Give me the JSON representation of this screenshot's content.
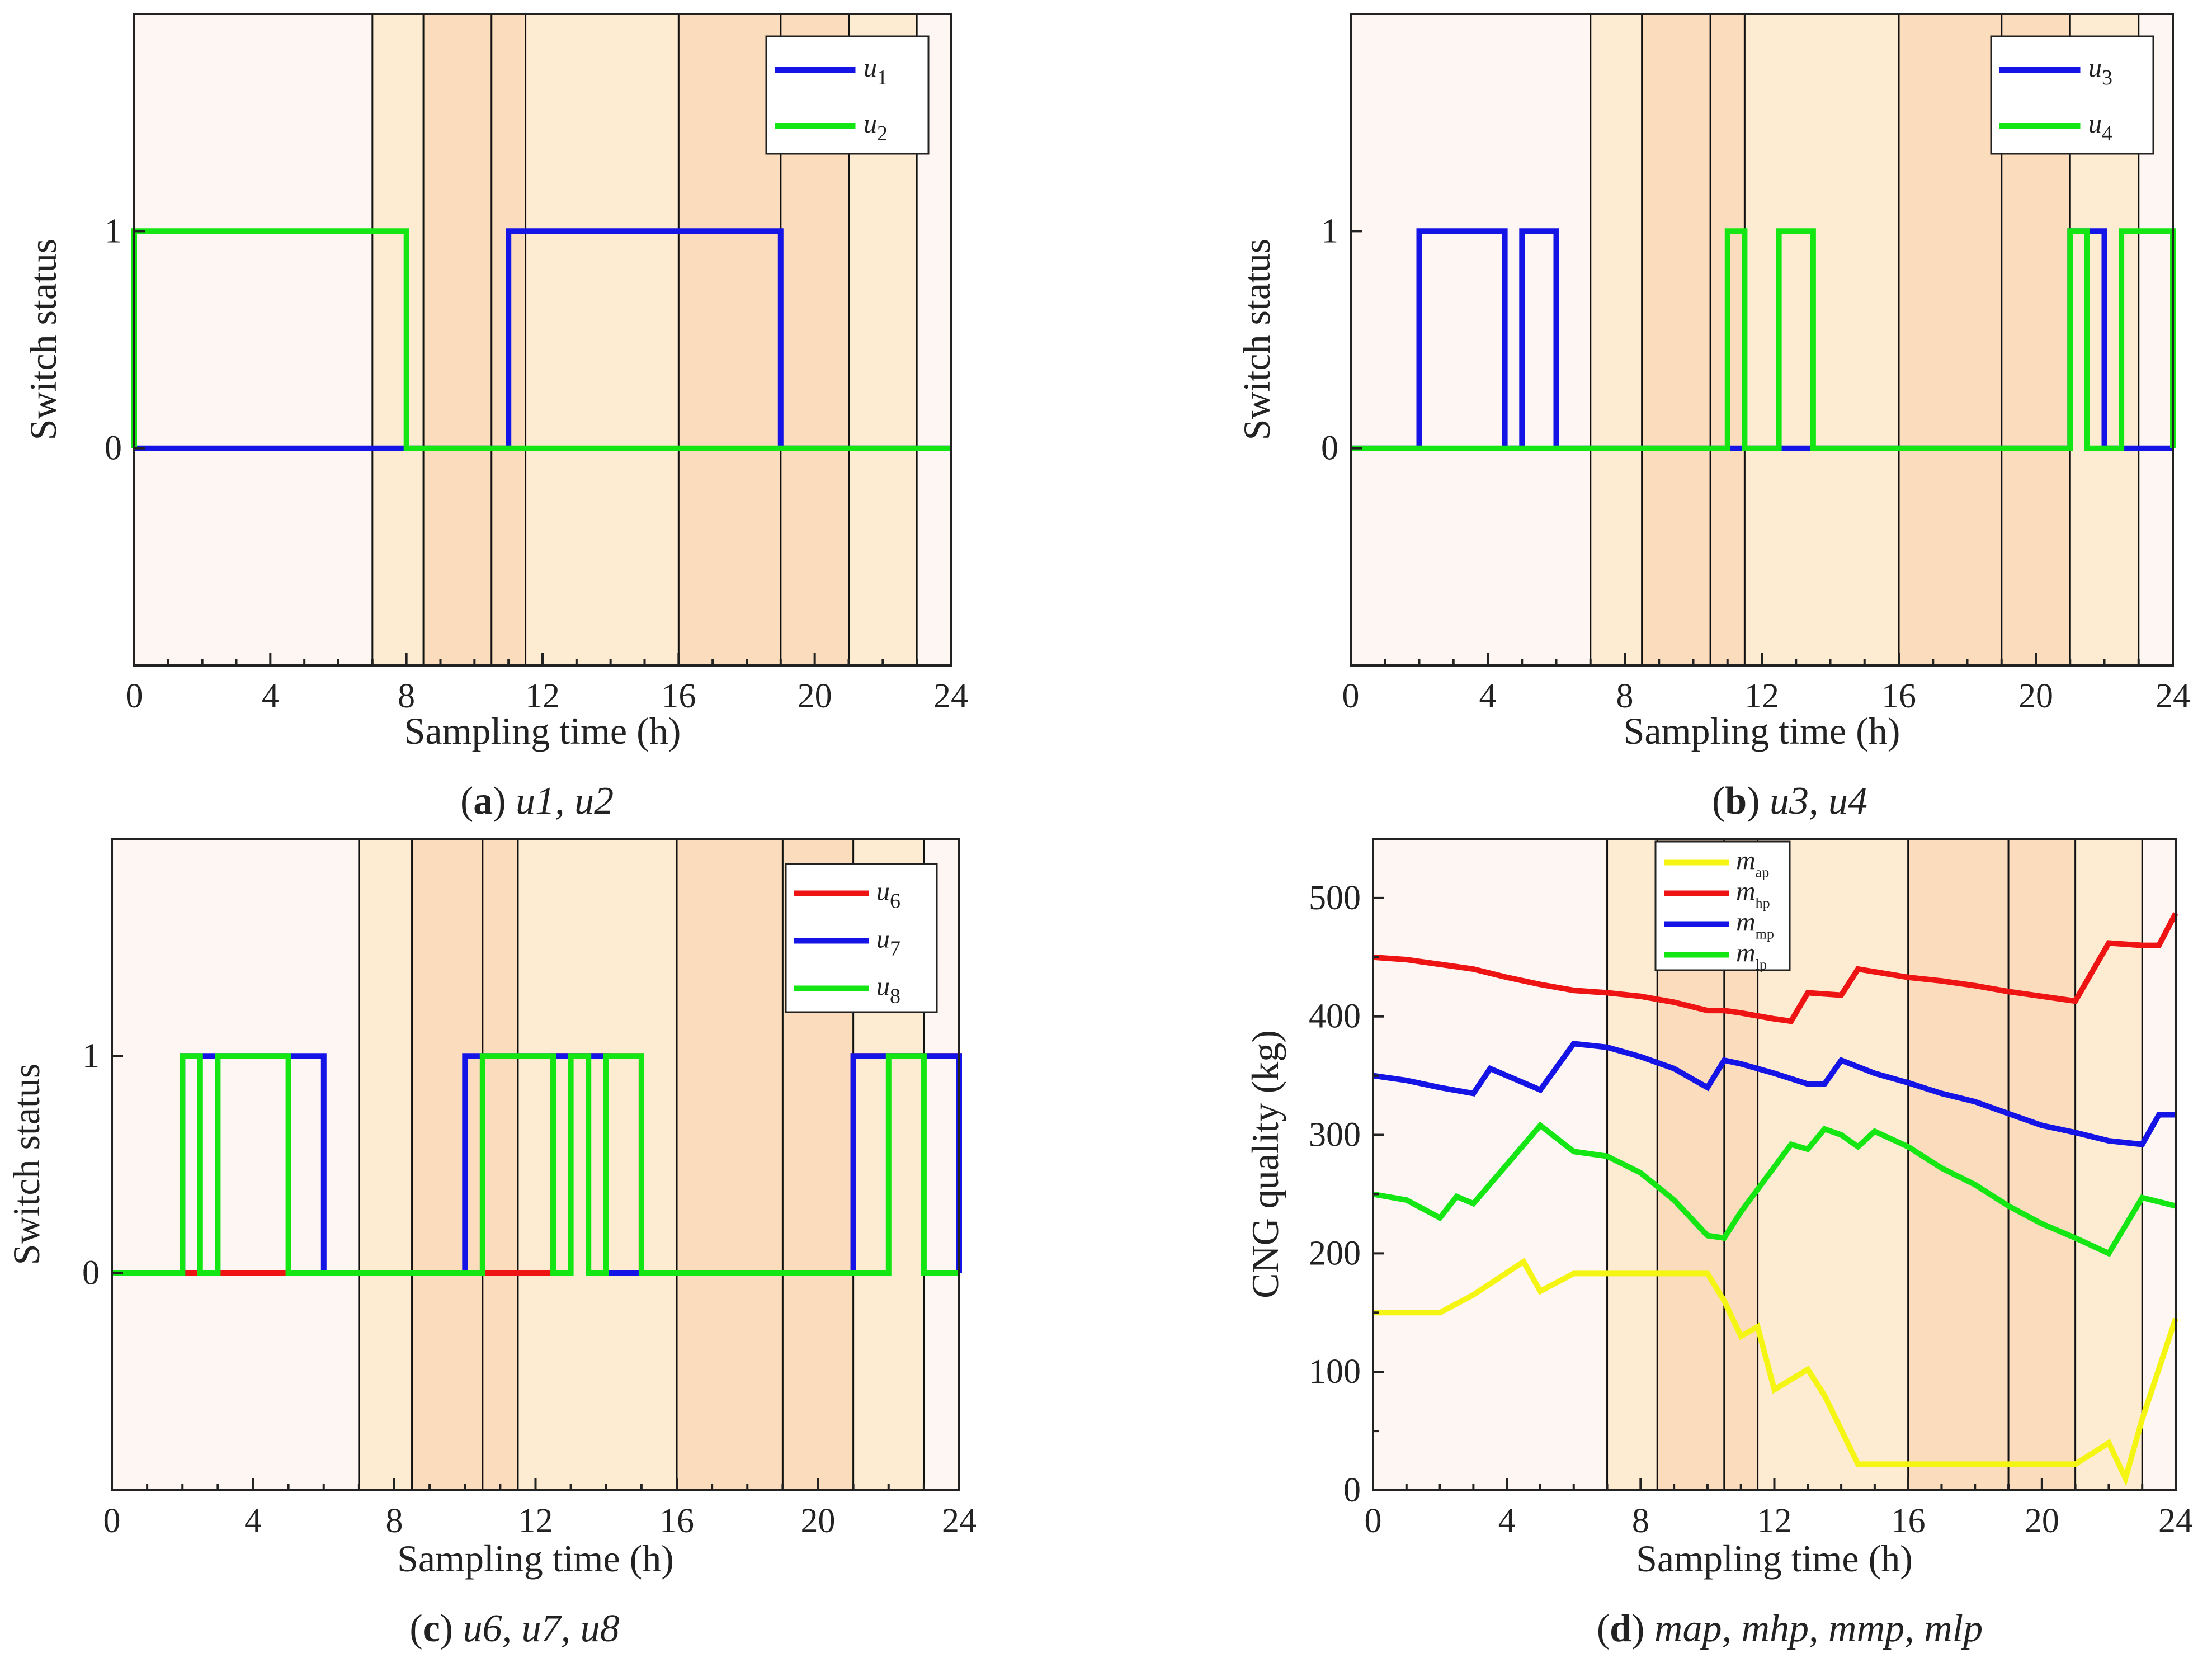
{
  "figure": {
    "panels": [
      {
        "id": "a",
        "caption": {
          "letter": "a",
          "text": "u1, u2"
        },
        "ylabel": "Switch status",
        "xlabel": "Sampling time (h)"
      },
      {
        "id": "b",
        "caption": {
          "letter": "b",
          "text": "u3, u4"
        },
        "ylabel": "Switch status",
        "xlabel": "Sampling time (h)"
      },
      {
        "id": "c",
        "caption": {
          "letter": "c",
          "text": "u6, u7, u8"
        },
        "ylabel": "Switch status",
        "xlabel": "Sampling time (h)"
      },
      {
        "id": "d",
        "caption": {
          "letter": "d",
          "text": "map, mhp, mmp, mlp"
        },
        "ylabel": "CNG quality (kg)",
        "xlabel": "Sampling time (h)"
      }
    ]
  },
  "colors": {
    "blue": "#1414e6",
    "green": "#14e614",
    "red": "#ee1414",
    "yellow": "#f5f514",
    "band_vlight": "#fdf6f2",
    "band_light": "#fdebd2",
    "band_med": "#fbdcbc"
  },
  "chart_data": [
    {
      "panel": "a",
      "type": "line",
      "title": "",
      "xlabel": "Sampling time (h)",
      "ylabel": "Switch status",
      "xlim": [
        0,
        24
      ],
      "ylim": [
        -1,
        2
      ],
      "xticks": [
        "0",
        "4",
        "8",
        "12",
        "16",
        "20",
        "24"
      ],
      "yticks": [
        "0",
        "1"
      ],
      "price_periods": [
        {
          "start": 0,
          "end": 7,
          "level": "vlight"
        },
        {
          "start": 7,
          "end": 8.5,
          "level": "light"
        },
        {
          "start": 8.5,
          "end": 10.5,
          "level": "med"
        },
        {
          "start": 10.5,
          "end": 11.5,
          "level": "dark"
        },
        {
          "start": 11.5,
          "end": 16,
          "level": "light"
        },
        {
          "start": 16,
          "end": 19,
          "level": "med"
        },
        {
          "start": 19,
          "end": 21,
          "level": "dark"
        },
        {
          "start": 21,
          "end": 23,
          "level": "light"
        },
        {
          "start": 23,
          "end": 24,
          "level": "vlight"
        }
      ],
      "legend_position": "top-right",
      "series": [
        {
          "name": "u",
          "sub": "1",
          "color": "blue",
          "on_intervals": [
            [
              11,
              19
            ]
          ]
        },
        {
          "name": "u",
          "sub": "2",
          "color": "green",
          "on_intervals": [
            [
              0,
              8
            ]
          ]
        }
      ]
    },
    {
      "panel": "b",
      "type": "line",
      "title": "",
      "xlabel": "Sampling time (h)",
      "ylabel": "Switch status",
      "xlim": [
        0,
        24
      ],
      "ylim": [
        -1,
        2
      ],
      "xticks": [
        "0",
        "4",
        "8",
        "12",
        "16",
        "20",
        "24"
      ],
      "yticks": [
        "0",
        "1"
      ],
      "price_periods": [
        {
          "start": 0,
          "end": 7,
          "level": "vlight"
        },
        {
          "start": 7,
          "end": 8.5,
          "level": "light"
        },
        {
          "start": 8.5,
          "end": 10.5,
          "level": "med"
        },
        {
          "start": 10.5,
          "end": 11.5,
          "level": "dark"
        },
        {
          "start": 11.5,
          "end": 16,
          "level": "light"
        },
        {
          "start": 16,
          "end": 19,
          "level": "med"
        },
        {
          "start": 19,
          "end": 21,
          "level": "dark"
        },
        {
          "start": 21,
          "end": 23,
          "level": "light"
        },
        {
          "start": 23,
          "end": 24,
          "level": "vlight"
        }
      ],
      "legend_position": "top-right",
      "series": [
        {
          "name": "u",
          "sub": "3",
          "color": "blue",
          "on_intervals": [
            [
              2,
              4.5
            ],
            [
              5,
              6
            ],
            [
              21,
              22
            ]
          ]
        },
        {
          "name": "u",
          "sub": "4",
          "color": "green",
          "on_intervals": [
            [
              11,
              11.5
            ],
            [
              12.5,
              13.5
            ],
            [
              21,
              21.5
            ],
            [
              22.5,
              24
            ]
          ]
        }
      ]
    },
    {
      "panel": "c",
      "type": "line",
      "title": "",
      "xlabel": "Sampling time (h)",
      "ylabel": "Switch status",
      "xlim": [
        0,
        24
      ],
      "ylim": [
        -1,
        2
      ],
      "xticks": [
        "0",
        "4",
        "8",
        "12",
        "16",
        "20",
        "24"
      ],
      "yticks": [
        "0",
        "1"
      ],
      "price_periods": [
        {
          "start": 0,
          "end": 7,
          "level": "vlight"
        },
        {
          "start": 7,
          "end": 8.5,
          "level": "light"
        },
        {
          "start": 8.5,
          "end": 10.5,
          "level": "med"
        },
        {
          "start": 10.5,
          "end": 11.5,
          "level": "dark"
        },
        {
          "start": 11.5,
          "end": 16,
          "level": "light"
        },
        {
          "start": 16,
          "end": 19,
          "level": "med"
        },
        {
          "start": 19,
          "end": 21,
          "level": "dark"
        },
        {
          "start": 21,
          "end": 23,
          "level": "light"
        },
        {
          "start": 23,
          "end": 24,
          "level": "vlight"
        }
      ],
      "legend_position": "top-right",
      "series": [
        {
          "name": "u",
          "sub": "6",
          "color": "red",
          "on_intervals": [
            [
              12.5,
              15
            ],
            [
              21,
              24
            ]
          ]
        },
        {
          "name": "u",
          "sub": "7",
          "color": "blue",
          "on_intervals": [
            [
              2,
              6
            ],
            [
              10,
              14
            ],
            [
              21,
              24
            ]
          ]
        },
        {
          "name": "u",
          "sub": "8",
          "color": "green",
          "on_intervals": [
            [
              2,
              2.5
            ],
            [
              3,
              5
            ],
            [
              10.5,
              12.5
            ],
            [
              13,
              13.5
            ],
            [
              14,
              15
            ],
            [
              22,
              23
            ]
          ]
        }
      ]
    },
    {
      "panel": "d",
      "type": "line",
      "title": "",
      "xlabel": "Sampling time (h)",
      "ylabel": "CNG quality (kg)",
      "xlim": [
        0,
        24
      ],
      "ylim": [
        0,
        550
      ],
      "xticks": [
        "0",
        "4",
        "8",
        "12",
        "16",
        "20",
        "24"
      ],
      "yticks": [
        "0",
        "100",
        "200",
        "300",
        "400",
        "500"
      ],
      "price_periods": [
        {
          "start": 0,
          "end": 7,
          "level": "vlight"
        },
        {
          "start": 7,
          "end": 8.5,
          "level": "light"
        },
        {
          "start": 8.5,
          "end": 10.5,
          "level": "med"
        },
        {
          "start": 10.5,
          "end": 11.5,
          "level": "dark"
        },
        {
          "start": 11.5,
          "end": 16,
          "level": "light"
        },
        {
          "start": 16,
          "end": 19,
          "level": "med"
        },
        {
          "start": 19,
          "end": 21,
          "level": "dark"
        },
        {
          "start": 21,
          "end": 23,
          "level": "light"
        },
        {
          "start": 23,
          "end": 24,
          "level": "vlight"
        }
      ],
      "legend_position": "top-center",
      "series": [
        {
          "name": "m",
          "sub": "ap",
          "color": "yellow",
          "x": [
            0,
            1,
            2,
            3,
            4.5,
            5,
            6,
            7,
            8,
            9,
            10,
            10.5,
            11,
            11.5,
            12,
            13,
            13.5,
            14.5,
            16,
            17,
            18,
            19,
            20,
            21,
            22,
            22.5,
            23,
            24
          ],
          "y": [
            150,
            150,
            150,
            165,
            193,
            168,
            183,
            183,
            183,
            183,
            183,
            160,
            130,
            138,
            85,
            102,
            80,
            22,
            22,
            22,
            22,
            22,
            22,
            22,
            40,
            10,
            60,
            145
          ]
        },
        {
          "name": "m",
          "sub": "hp",
          "color": "red",
          "x": [
            0,
            1,
            2,
            3,
            4,
            5,
            6,
            7,
            8,
            9,
            10,
            10.5,
            11,
            12,
            12.5,
            13,
            14,
            14.5,
            16,
            17,
            18,
            19,
            20,
            21,
            22,
            23,
            23.5,
            24
          ],
          "y": [
            450,
            448,
            444,
            440,
            433,
            427,
            422,
            420,
            417,
            412,
            405,
            405,
            403,
            398,
            396,
            420,
            418,
            440,
            433,
            430,
            426,
            421,
            417,
            413,
            462,
            460,
            460,
            487
          ]
        },
        {
          "name": "m",
          "sub": "mp",
          "color": "blue",
          "x": [
            0,
            1,
            2,
            3,
            3.5,
            4,
            5,
            6,
            7,
            8,
            9,
            10,
            10.5,
            11,
            12,
            13,
            13.5,
            14,
            15,
            16,
            17,
            18,
            19,
            20,
            21,
            22,
            23,
            23.5,
            24
          ],
          "y": [
            350,
            346,
            340,
            335,
            356,
            350,
            338,
            377,
            374,
            366,
            356,
            340,
            363,
            360,
            352,
            343,
            343,
            363,
            352,
            344,
            335,
            328,
            318,
            308,
            302,
            295,
            292,
            317,
            317
          ]
        },
        {
          "name": "m",
          "sub": "lp",
          "color": "green",
          "x": [
            0,
            1,
            2,
            2.5,
            3,
            4,
            5,
            6,
            7,
            8,
            9,
            10,
            10.5,
            11,
            12,
            12.5,
            13,
            13.5,
            14,
            14.5,
            15,
            16,
            17,
            18,
            19,
            20,
            21,
            22,
            23,
            24
          ],
          "y": [
            250,
            245,
            230,
            248,
            242,
            275,
            308,
            286,
            282,
            268,
            245,
            215,
            213,
            235,
            273,
            292,
            288,
            305,
            300,
            290,
            303,
            290,
            272,
            258,
            240,
            225,
            213,
            200,
            247,
            240
          ]
        }
      ]
    }
  ]
}
